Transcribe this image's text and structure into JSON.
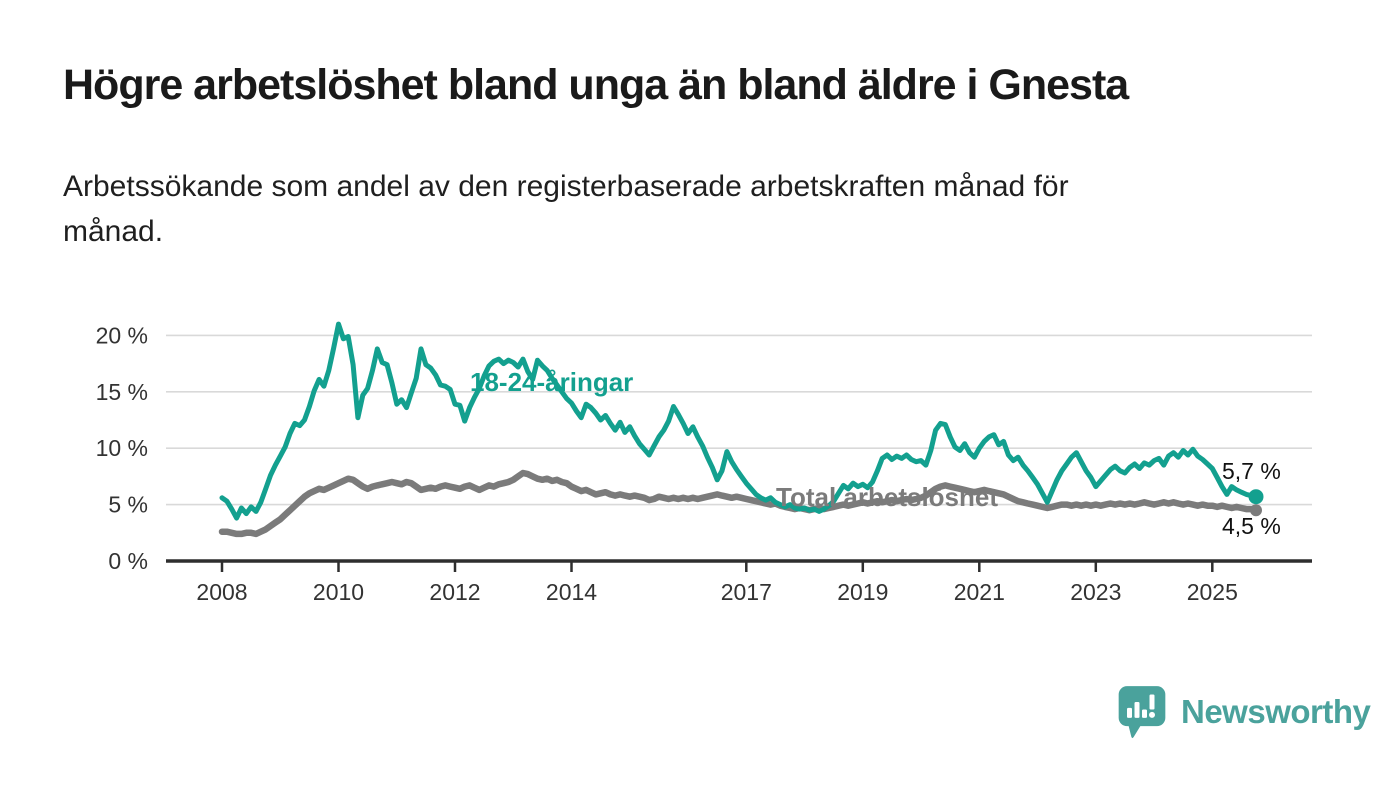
{
  "page": {
    "background": "#ffffff"
  },
  "header": {
    "title": "Högre arbetslöshet bland unga än bland äldre i Gnesta",
    "subtitle_lines": [
      "Arbetssökande som andel av den registerbaserade arbetskraften månad för",
      "månad."
    ]
  },
  "chart_data": {
    "type": "line",
    "title": "Högre arbetslöshet bland unga än bland äldre i Gnesta",
    "subtitle": "Arbetssökande som andel av den registerbaserade arbetskraften månad för månad.",
    "xlabel": "",
    "ylabel": "",
    "x_start": "2008-01",
    "x_end": "2025-10",
    "frequency": "monthly",
    "ylim": [
      0,
      22
    ],
    "grid": "horizontal",
    "legend_position": "inline-labels",
    "x_axis": {
      "tick_years": [
        2008,
        2010,
        2012,
        2014,
        2017,
        2019,
        2021,
        2023,
        2025
      ],
      "tick_labels": [
        "2008",
        "2010",
        "2012",
        "2014",
        "2017",
        "2019",
        "2021",
        "2023",
        "2025"
      ]
    },
    "y_axis": {
      "tick_values": [
        0,
        5,
        10,
        15,
        20
      ],
      "tick_labels": [
        "0 %",
        "5 %",
        "10 %",
        "15 %",
        "20 %"
      ]
    },
    "colors": {
      "gridline": "#d9d9d9",
      "axis": "#2e2e2e",
      "tick_label": "#333333",
      "end_label": "#111111"
    },
    "series": [
      {
        "id": "youth",
        "name": "18-24-åringar",
        "color": "#13a08f",
        "end_label": "5,7 %",
        "end_value": 5.7,
        "values": [
          5.6,
          5.3,
          4.6,
          3.8,
          4.7,
          4.2,
          4.8,
          4.4,
          5.2,
          6.4,
          7.6,
          8.5,
          9.3,
          10.1,
          11.3,
          12.2,
          12.0,
          12.5,
          13.7,
          15.1,
          16.1,
          15.5,
          16.9,
          18.9,
          21.0,
          19.7,
          19.9,
          17.4,
          12.7,
          14.7,
          15.3,
          16.9,
          18.8,
          17.6,
          17.4,
          15.8,
          13.9,
          14.3,
          13.6,
          14.9,
          16.2,
          18.8,
          17.4,
          17.1,
          16.5,
          15.6,
          15.5,
          15.2,
          13.9,
          13.8,
          12.4,
          13.6,
          14.5,
          15.3,
          16.4,
          17.3,
          17.7,
          17.9,
          17.5,
          17.8,
          17.6,
          17.2,
          17.9,
          16.8,
          16.1,
          17.8,
          17.3,
          16.9,
          16.2,
          15.6,
          15.0,
          14.4,
          14.0,
          13.3,
          12.7,
          13.9,
          13.6,
          13.1,
          12.5,
          12.9,
          12.2,
          11.6,
          12.3,
          11.4,
          11.9,
          11.1,
          10.4,
          9.9,
          9.4,
          10.2,
          11.0,
          11.6,
          12.4,
          13.7,
          13.0,
          12.2,
          11.3,
          11.9,
          11.0,
          10.2,
          9.2,
          8.3,
          7.2,
          8.0,
          9.7,
          8.8,
          8.1,
          7.5,
          6.9,
          6.4,
          5.9,
          5.6,
          5.4,
          5.6,
          5.2,
          5.0,
          4.8,
          5.0,
          4.7,
          4.6,
          4.7,
          4.5,
          4.6,
          4.4,
          4.6,
          4.9,
          5.3,
          6.0,
          6.7,
          6.4,
          6.9,
          6.6,
          6.8,
          6.5,
          7.0,
          8.0,
          9.1,
          9.4,
          9.0,
          9.3,
          9.1,
          9.4,
          9.0,
          8.8,
          8.9,
          8.5,
          9.8,
          11.6,
          12.2,
          12.1,
          11.0,
          10.1,
          9.8,
          10.4,
          9.6,
          9.2,
          10.0,
          10.6,
          11.0,
          11.2,
          10.3,
          10.6,
          9.4,
          8.9,
          9.2,
          8.5,
          8.0,
          7.4,
          6.8,
          6.0,
          5.2,
          6.2,
          7.2,
          8.0,
          8.6,
          9.2,
          9.6,
          8.8,
          8.0,
          7.4,
          6.6,
          7.1,
          7.6,
          8.1,
          8.4,
          8.0,
          7.8,
          8.3,
          8.6,
          8.2,
          8.7,
          8.5,
          8.9,
          9.1,
          8.5,
          9.3,
          9.6,
          9.2,
          9.8,
          9.4,
          9.9,
          9.3,
          9.0,
          8.6,
          8.2,
          7.4,
          6.6,
          5.9,
          6.6,
          6.3,
          6.1,
          5.9,
          5.8,
          5.7
        ]
      },
      {
        "id": "total",
        "name": "Total arbetslöshet",
        "color": "#7b7b7b",
        "end_label": "4,5 %",
        "end_value": 4.5,
        "values": [
          2.6,
          2.6,
          2.5,
          2.4,
          2.4,
          2.5,
          2.5,
          2.4,
          2.6,
          2.8,
          3.1,
          3.4,
          3.7,
          4.1,
          4.5,
          4.9,
          5.3,
          5.7,
          6.0,
          6.2,
          6.4,
          6.3,
          6.5,
          6.7,
          6.9,
          7.1,
          7.3,
          7.2,
          6.9,
          6.6,
          6.4,
          6.6,
          6.7,
          6.8,
          6.9,
          7.0,
          6.9,
          6.8,
          7.0,
          6.9,
          6.6,
          6.3,
          6.4,
          6.5,
          6.4,
          6.6,
          6.7,
          6.6,
          6.5,
          6.4,
          6.6,
          6.7,
          6.5,
          6.3,
          6.5,
          6.7,
          6.6,
          6.8,
          6.9,
          7.0,
          7.2,
          7.5,
          7.8,
          7.7,
          7.5,
          7.3,
          7.2,
          7.3,
          7.1,
          7.2,
          7.0,
          6.9,
          6.6,
          6.4,
          6.2,
          6.3,
          6.1,
          5.9,
          6.0,
          6.1,
          5.9,
          5.8,
          5.9,
          5.8,
          5.7,
          5.8,
          5.7,
          5.6,
          5.4,
          5.5,
          5.7,
          5.6,
          5.5,
          5.6,
          5.5,
          5.6,
          5.5,
          5.6,
          5.5,
          5.6,
          5.7,
          5.8,
          5.9,
          5.8,
          5.7,
          5.6,
          5.7,
          5.6,
          5.5,
          5.4,
          5.3,
          5.2,
          5.1,
          5.0,
          5.1,
          4.9,
          4.8,
          4.7,
          4.6,
          4.7,
          4.6,
          4.5,
          4.6,
          4.7,
          4.6,
          4.7,
          4.8,
          4.9,
          5.0,
          4.9,
          5.0,
          5.1,
          5.2,
          5.1,
          5.2,
          5.3,
          5.2,
          5.3,
          5.4,
          5.3,
          5.4,
          5.5,
          5.4,
          5.5,
          5.6,
          5.8,
          6.1,
          6.4,
          6.6,
          6.7,
          6.6,
          6.5,
          6.4,
          6.3,
          6.2,
          6.1,
          6.2,
          6.3,
          6.2,
          6.1,
          6.0,
          5.9,
          5.7,
          5.5,
          5.3,
          5.2,
          5.1,
          5.0,
          4.9,
          4.8,
          4.7,
          4.8,
          4.9,
          5.0,
          5.0,
          4.9,
          5.0,
          4.9,
          5.0,
          4.9,
          5.0,
          4.9,
          5.0,
          5.1,
          5.0,
          5.1,
          5.0,
          5.1,
          5.0,
          5.1,
          5.2,
          5.1,
          5.0,
          5.1,
          5.2,
          5.1,
          5.2,
          5.1,
          5.0,
          5.1,
          5.0,
          4.9,
          5.0,
          4.9,
          4.9,
          4.8,
          4.9,
          4.8,
          4.7,
          4.8,
          4.7,
          4.6,
          4.6,
          4.5
        ]
      }
    ]
  },
  "footer": {
    "brand": "Newsworthy",
    "brand_color": "#4aa29c",
    "logo_icon": "bar-chart-speech-bubble-icon"
  }
}
